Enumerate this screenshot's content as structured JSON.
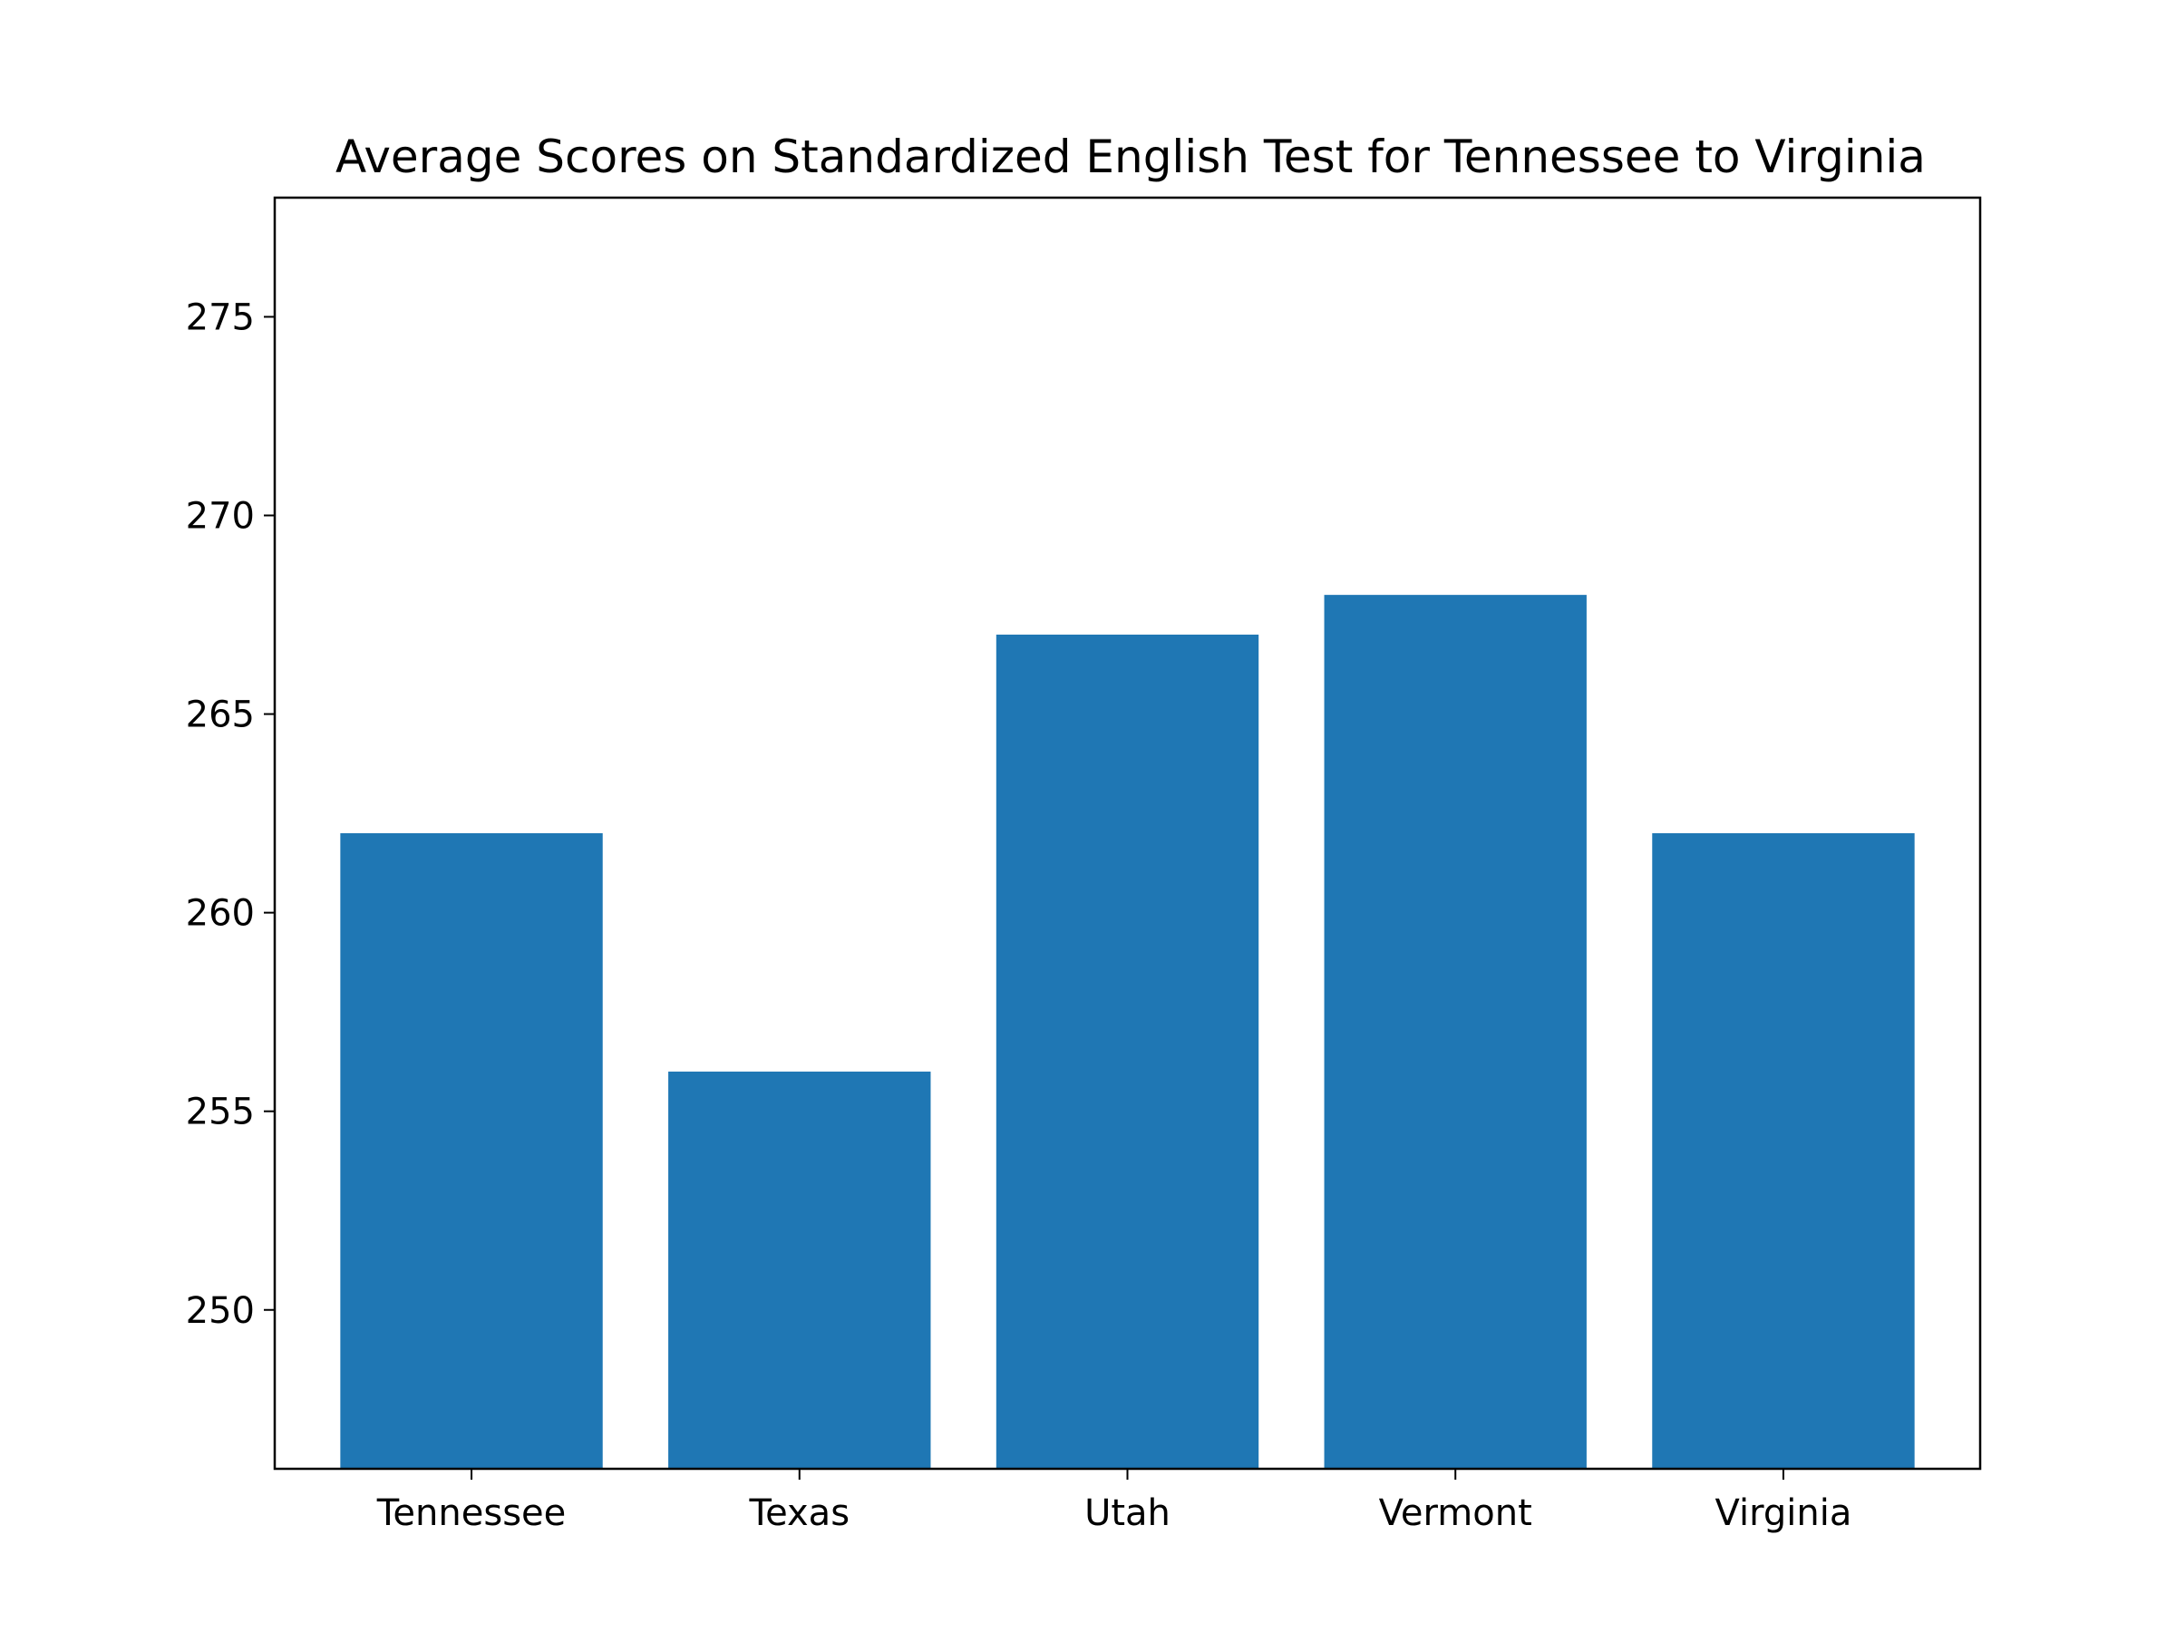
{
  "chart_data": {
    "type": "bar",
    "title": "Average Scores on Standardized English Test for Tennessee to Virginia",
    "xlabel": "",
    "ylabel": "",
    "categories": [
      "Tennessee",
      "Texas",
      "Utah",
      "Vermont",
      "Virginia"
    ],
    "values": [
      262,
      256,
      267,
      268,
      262
    ],
    "ylim": [
      246,
      278
    ],
    "yticks": [
      250,
      255,
      260,
      265,
      270,
      275
    ],
    "grid": false,
    "legend": "none",
    "bar_color": "#1f77b4"
  }
}
